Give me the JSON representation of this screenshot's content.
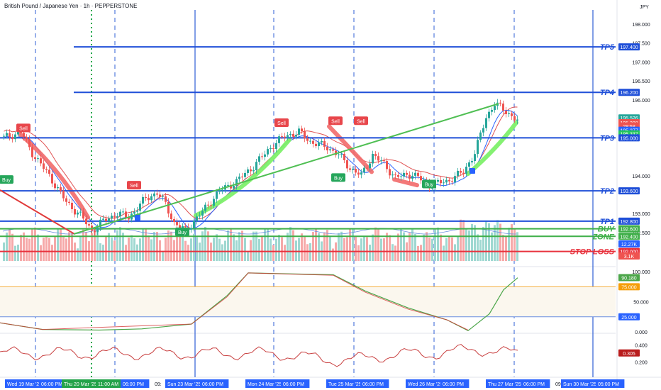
{
  "header": {
    "title": "British Pound / Japanese Yen · 1h · PEPPERSTONE",
    "currency": "JPY"
  },
  "colors": {
    "level_blue": "#1f4fd8",
    "zone_green": "#3faf49",
    "stop_red": "#e8323d",
    "candle_up": "#26a69a",
    "candle_down": "#ef5350",
    "vol_up": "#9fd8d1",
    "vol_down": "#f6a9a9",
    "trend_green": "#4fbf53",
    "band_green": "#7ef06a",
    "band_red": "#f26a6a",
    "rsi_line": "#4ca64a",
    "rsi_line2": "#d63a3a",
    "osc_line": "#c94040"
  },
  "price_axis": {
    "ticks": [
      {
        "v": 198.0,
        "t": "198.000"
      },
      {
        "v": 197.5,
        "t": "197.500"
      },
      {
        "v": 197.0,
        "t": "197.000"
      },
      {
        "v": 196.5,
        "t": "196.500"
      },
      {
        "v": 196.0,
        "t": "196.000"
      },
      {
        "v": 194.0,
        "t": "194.000"
      },
      {
        "v": 193.0,
        "t": "193.000"
      },
      {
        "v": 192.5,
        "t": "192.500"
      }
    ],
    "badges": [
      {
        "v": 197.4,
        "t": "197.400",
        "bg": "#1f4fd8",
        "fg": "#ffffff"
      },
      {
        "v": 196.2,
        "t": "196.200",
        "bg": "#1f4fd8",
        "fg": "#ffffff"
      },
      {
        "v": 195.526,
        "t": "195.526",
        "bg": "#26a69a",
        "fg": "#ffffff"
      },
      {
        "v": 195.398,
        "t": "195.398",
        "bg": "#ef5350",
        "fg": "#ffffff"
      },
      {
        "v": 195.31,
        "t": "28:58",
        "bg": "#ef5350",
        "fg": "#ffffff"
      },
      {
        "v": 195.2,
        "t": "195.277",
        "bg": "#2962ff",
        "fg": "#ffffff"
      },
      {
        "v": 195.105,
        "t": "195.337",
        "bg": "#22c55e",
        "fg": "#ffffff"
      },
      {
        "v": 195.0,
        "t": "195.000",
        "bg": "#1f4fd8",
        "fg": "#ffffff"
      },
      {
        "v": 193.6,
        "t": "193.600",
        "bg": "#1f4fd8",
        "fg": "#ffffff"
      },
      {
        "v": 192.8,
        "t": "192.800",
        "bg": "#1f4fd8",
        "fg": "#ffffff"
      },
      {
        "v": 192.6,
        "t": "192.600",
        "bg": "#3faf49",
        "fg": "#ffffff"
      },
      {
        "v": 192.4,
        "t": "192.400",
        "bg": "#3faf49",
        "fg": "#ffffff"
      },
      {
        "v": 192.2,
        "t": "12.27K",
        "bg": "#2962ff",
        "fg": "#ffffff"
      },
      {
        "v": 192.0,
        "t": "192.000",
        "bg": "#e8323d",
        "fg": "#ffffff"
      }
    ],
    "volume_badge": "3.1K"
  },
  "levels": [
    {
      "name": "TP5",
      "value": 197.4,
      "color": "#1f4fd8"
    },
    {
      "name": "TP4",
      "value": 196.2,
      "color": "#1f4fd8"
    },
    {
      "name": "TP3",
      "value": 195.0,
      "color": "#1f4fd8"
    },
    {
      "name": "TP2",
      "value": 193.6,
      "color": "#1f4fd8"
    },
    {
      "name": "TP1",
      "value": 192.8,
      "color": "#1f4fd8"
    },
    {
      "name": "BUY",
      "value": 192.6,
      "color": "#3faf49"
    },
    {
      "name": "ZONE",
      "value": 192.4,
      "color": "#3faf49"
    },
    {
      "name": "STOP LOSS",
      "value": 192.0,
      "color": "#e8323d"
    }
  ],
  "signals": [
    {
      "type": "Sell",
      "bar": 7,
      "price": 195.26
    },
    {
      "type": "Buy",
      "bar": 1,
      "price": 193.9
    },
    {
      "type": "Sell",
      "bar": 46,
      "price": 193.75
    },
    {
      "type": "Buy",
      "bar": 63,
      "price": 192.52
    },
    {
      "type": "Sell",
      "bar": 98,
      "price": 195.4
    },
    {
      "type": "Sell",
      "bar": 117,
      "price": 195.45
    },
    {
      "type": "Buy",
      "bar": 118,
      "price": 193.95
    },
    {
      "type": "Sell",
      "bar": 126,
      "price": 195.45
    },
    {
      "type": "Buy",
      "bar": 150,
      "price": 193.78
    }
  ],
  "indicator1": {
    "ticks": [
      {
        "v": 100,
        "t": "100.000"
      },
      {
        "v": 50,
        "t": "50.000"
      },
      {
        "v": 0,
        "t": "0.000"
      }
    ],
    "badges": [
      {
        "v": 90.18,
        "t": "90.180",
        "bg": "#4ca64a"
      },
      {
        "v": 75,
        "t": "75.000",
        "bg": "#f59e0b"
      },
      {
        "v": 25,
        "t": "25.000",
        "bg": "#2962ff"
      }
    ],
    "upper": 75,
    "lower": 25
  },
  "indicator2": {
    "ticks": [
      {
        "v": 0.4,
        "t": "0.400"
      },
      {
        "v": 0.2,
        "t": "0.200"
      }
    ],
    "badge": {
      "v": 0.305,
      "t": "0.305",
      "bg": "#b91c1c"
    }
  },
  "time_axis": {
    "labels": [
      {
        "x": 10,
        "t": "Wed 19 Mar '25",
        "hl": true
      },
      {
        "x": 58,
        "t": "06:00 PM",
        "hl": true
      },
      {
        "x": 90,
        "t": "Thu 20 Mar '25",
        "hl": "green"
      },
      {
        "x": 138,
        "t": "11:00 AM",
        "hl": "green"
      },
      {
        "x": 173,
        "t": "06:00 PM",
        "hl": true
      },
      {
        "x": 218,
        "t": "09:",
        "hl": false
      },
      {
        "x": 236,
        "t": "Sun 23 Mar '25",
        "hl": true
      },
      {
        "x": 285,
        "t": "06:00 PM",
        "hl": true
      },
      {
        "x": 349,
        "t": "Mon 24 Mar '25",
        "hl": true
      },
      {
        "x": 399,
        "t": "06:00 PM",
        "hl": true
      },
      {
        "x": 463,
        "t": "Tue 25 Mar '25",
        "hl": true
      },
      {
        "x": 511,
        "t": "06:00 PM",
        "hl": true
      },
      {
        "x": 575,
        "t": "Wed 26 Mar '25",
        "hl": true
      },
      {
        "x": 624,
        "t": "06:00 PM",
        "hl": true
      },
      {
        "x": 688,
        "t": "Thu 27 Mar '25",
        "hl": true
      },
      {
        "x": 738,
        "t": "06:00 PM",
        "hl": true
      },
      {
        "x": 783,
        "t": "09:",
        "hl": false
      },
      {
        "x": 794,
        "t": "Sun 30 Mar '25",
        "hl": true
      },
      {
        "x": 843,
        "t": "05:00 PM",
        "hl": true
      }
    ]
  },
  "chart_data": {
    "type": "candlestick",
    "title": "British Pound / Japanese Yen · 1h · PEPPERSTONE",
    "x_range": [
      "Wed 19 Mar '25",
      "Sun 30 Mar '25"
    ],
    "ylim": [
      191.6,
      198.3
    ],
    "levels": {
      "TP5": 197.4,
      "TP4": 196.2,
      "TP3": 195.0,
      "TP2": 193.6,
      "TP1": 192.8,
      "BUY": 192.6,
      "ZONE": 192.4,
      "STOP LOSS": 192.0
    },
    "last_price": 195.398,
    "indicator_levels": [
      75,
      25
    ],
    "indicator_last": 90.18,
    "oscillator_last": 0.305
  }
}
